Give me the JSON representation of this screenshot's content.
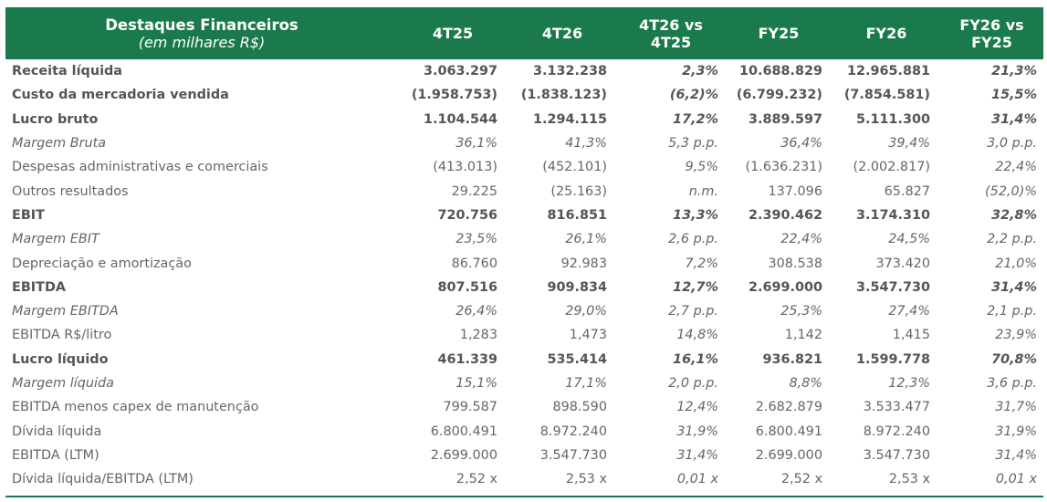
{
  "header": {
    "title": "Destaques Financeiros",
    "subtitle": "(em milhares R$)",
    "columns": [
      "4T25",
      "4T26",
      "4T26 vs\n4T25",
      "FY25",
      "FY26",
      "FY26 vs\nFY25"
    ]
  },
  "rows": [
    {
      "label": "Receita líquida",
      "style": "bold",
      "values": [
        "3.063.297",
        "3.132.238",
        "2,3%",
        "10.688.829",
        "12.965.881",
        "21,3%"
      ]
    },
    {
      "label": "Custo da mercadoria vendida",
      "style": "bold",
      "values": [
        "(1.958.753)",
        "(1.838.123)",
        "(6,2)%",
        "(6.799.232)",
        "(7.854.581)",
        "15,5%"
      ]
    },
    {
      "label": "Lucro bruto",
      "style": "bold",
      "values": [
        "1.104.544",
        "1.294.115",
        "17,2%",
        "3.889.597",
        "5.111.300",
        "31,4%"
      ]
    },
    {
      "label": "Margem Bruta",
      "style": "italic",
      "values": [
        "36,1%",
        "41,3%",
        "5,3 p.p.",
        "36,4%",
        "39,4%",
        "3,0 p.p."
      ]
    },
    {
      "label": "Despesas administrativas e comerciais",
      "style": "normal",
      "values": [
        "(413.013)",
        "(452.101)",
        "9,5%",
        "(1.636.231)",
        "(2.002.817)",
        "22,4%"
      ]
    },
    {
      "label": "Outros resultados",
      "style": "normal",
      "values": [
        "29.225",
        "(25.163)",
        "n.m.",
        "137.096",
        "65.827",
        "(52,0)%"
      ]
    },
    {
      "label": "EBIT",
      "style": "bold",
      "values": [
        "720.756",
        "816.851",
        "13,3%",
        "2.390.462",
        "3.174.310",
        "32,8%"
      ]
    },
    {
      "label": "Margem EBIT",
      "style": "italic",
      "values": [
        "23,5%",
        "26,1%",
        "2,6 p.p.",
        "22,4%",
        "24,5%",
        "2,2 p.p."
      ]
    },
    {
      "label": "Depreciação e amortização",
      "style": "normal",
      "values": [
        "86.760",
        "92.983",
        "7,2%",
        "308.538",
        "373.420",
        "21,0%"
      ]
    },
    {
      "label": "EBITDA",
      "style": "bold",
      "values": [
        "807.516",
        "909.834",
        "12,7%",
        "2.699.000",
        "3.547.730",
        "31,4%"
      ]
    },
    {
      "label": "Margem EBITDA",
      "style": "italic",
      "values": [
        "26,4%",
        "29,0%",
        "2,7 p.p.",
        "25,3%",
        "27,4%",
        "2,1 p.p."
      ]
    },
    {
      "label": "EBITDA R$/litro",
      "style": "normal",
      "values": [
        "1,283",
        "1,473",
        "14,8%",
        "1,142",
        "1,415",
        "23,9%"
      ]
    },
    {
      "label": "Lucro líquido",
      "style": "bold",
      "values": [
        "461.339",
        "535.414",
        "16,1%",
        "936.821",
        "1.599.778",
        "70,8%"
      ]
    },
    {
      "label": "Margem líquida",
      "style": "italic",
      "values": [
        "15,1%",
        "17,1%",
        "2,0 p.p.",
        "8,8%",
        "12,3%",
        "3,6 p.p."
      ]
    },
    {
      "label": "EBITDA menos capex de manutenção",
      "style": "normal",
      "values": [
        "799.587",
        "898.590",
        "12,4%",
        "2.682.879",
        "3.533.477",
        "31,7%"
      ]
    },
    {
      "label": "Dívida líquida",
      "style": "normal",
      "values": [
        "6.800.491",
        "8.972.240",
        "31,9%",
        "6.800.491",
        "8.972.240",
        "31,9%"
      ]
    },
    {
      "label": "EBITDA (LTM)",
      "style": "normal",
      "values": [
        "2.699.000",
        "3.547.730",
        "31,4%",
        "2.699.000",
        "3.547.730",
        "31,4%"
      ]
    },
    {
      "label": "Dívida líquida/EBITDA (LTM)",
      "style": "normal",
      "values": [
        "2,52 x",
        "2,53 x",
        "0,01 x",
        "2,52 x",
        "2,53 x",
        "0,01 x"
      ]
    }
  ],
  "colors": {
    "header_bg": "#1a7a4c",
    "header_text": "#ffffff",
    "body_text": "#666666"
  }
}
